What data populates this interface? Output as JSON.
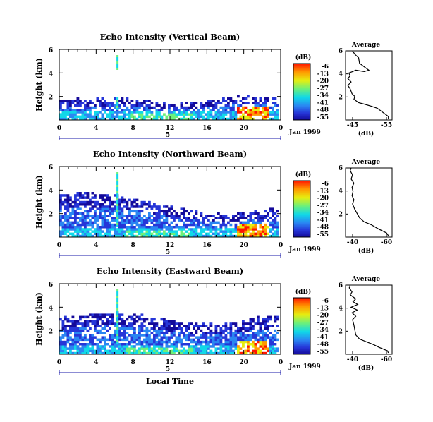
{
  "chart_data": [
    {
      "type": "heatmap",
      "title": "Echo Intensity (Vertical Beam)",
      "ylabel": "Height (km)",
      "yticks": [
        "2",
        "4",
        "6"
      ],
      "ylim": [
        0,
        6
      ],
      "xticks": [
        "0",
        "4",
        "8",
        "12",
        "16",
        "20",
        "0"
      ],
      "xlim": [
        0,
        24
      ],
      "date_label": "Jan 1999",
      "day_marker": "5",
      "colorbar": {
        "unit": "(dB)",
        "labels": [
          "-6",
          "-13",
          "-20",
          "-27",
          "-34",
          "-41",
          "-48",
          "-55"
        ]
      },
      "average": {
        "title": "Average",
        "xlabel": "(dB)",
        "xticks": [
          "-45",
          "-55"
        ],
        "yticks": [
          "2",
          "4",
          "6"
        ]
      }
    },
    {
      "type": "heatmap",
      "title": "Echo Intensity (Northward Beam)",
      "ylabel": "Height (km)",
      "yticks": [
        "2",
        "4",
        "6"
      ],
      "ylim": [
        0,
        6
      ],
      "xticks": [
        "0",
        "4",
        "8",
        "12",
        "16",
        "20",
        "0"
      ],
      "xlim": [
        0,
        24
      ],
      "date_label": "Jan 1999",
      "day_marker": "5",
      "colorbar": {
        "unit": "(dB)",
        "labels": [
          "-6",
          "-13",
          "-20",
          "-27",
          "-34",
          "-41",
          "-48",
          "-55"
        ]
      },
      "average": {
        "title": "Average",
        "xlabel": "(dB)",
        "xticks": [
          "-40",
          "-60"
        ],
        "yticks": [
          "2",
          "4",
          "6"
        ]
      }
    },
    {
      "type": "heatmap",
      "title": "Echo Intensity (Eastward Beam)",
      "ylabel": "Height (km)",
      "yticks": [
        "2",
        "4",
        "6"
      ],
      "ylim": [
        0,
        6
      ],
      "xticks": [
        "0",
        "4",
        "8",
        "12",
        "16",
        "20",
        "0"
      ],
      "xlim": [
        0,
        24
      ],
      "date_label": "Jan 1999",
      "day_marker": "5",
      "xlabel": "Local Time",
      "colorbar": {
        "unit": "(dB)",
        "labels": [
          "-6",
          "-13",
          "-20",
          "-27",
          "-34",
          "-41",
          "-48",
          "-55"
        ]
      },
      "average": {
        "title": "Average",
        "xlabel": "(dB)",
        "xticks": [
          "-40",
          "-60"
        ],
        "yticks": [
          "2",
          "4",
          "6"
        ]
      }
    }
  ]
}
